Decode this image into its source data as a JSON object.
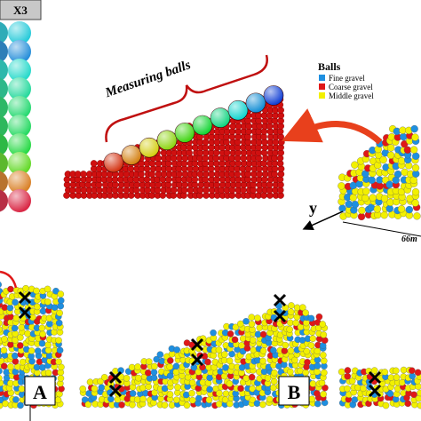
{
  "panel_x3": {
    "label": "X3"
  },
  "annotation": {
    "measuring_balls": "Measuring balls"
  },
  "legend": {
    "title": "Balls",
    "items": [
      {
        "label": "Fine gravel",
        "color": "#1e8fe0"
      },
      {
        "label": "Coarse gravel",
        "color": "#e01818"
      },
      {
        "label": "Middle gravel",
        "color": "#f2f000"
      }
    ]
  },
  "axis": {
    "y": "y",
    "distance": "66m"
  },
  "panels": [
    "A",
    "B"
  ]
}
